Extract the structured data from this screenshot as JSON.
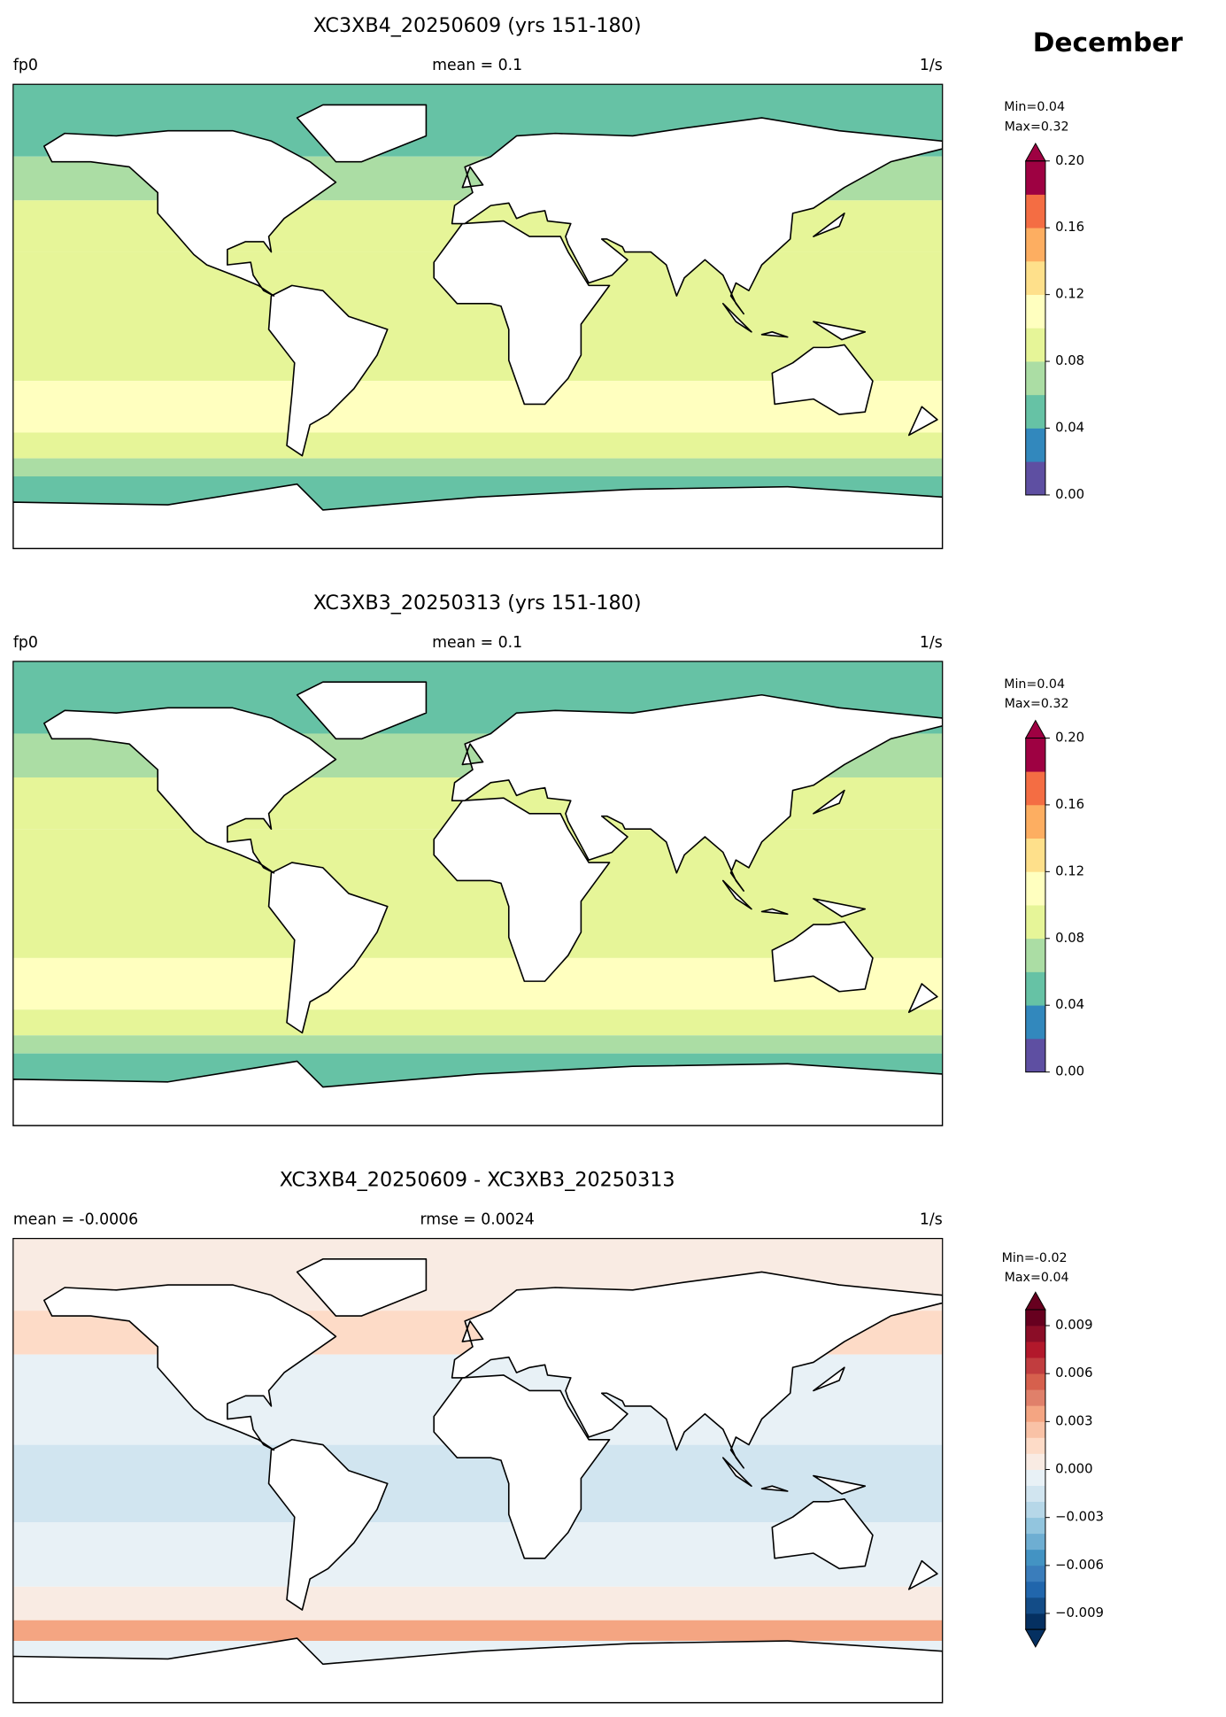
{
  "page_title": "December",
  "panels": [
    {
      "title": "XC3XB4_20250609 (yrs 151-180)",
      "left_label": "fp0",
      "center_label": "mean = 0.1",
      "right_label": "1/s",
      "min_label": "Min=0.04",
      "max_label": "Max=0.32",
      "colorbar": {
        "lim": [
          0,
          0.2
        ],
        "ticks": [
          {
            "value": 0,
            "label": "0.00"
          },
          0.04,
          0.08,
          0.12,
          0.16,
          {
            "value": 0.2,
            "label": "0.20"
          }
        ],
        "extend": "max",
        "colors": [
          "#5e4fa2",
          "#3288bd",
          "#66c2a5",
          "#abdda4",
          "#e6f598",
          "#ffffbf",
          "#fee08b",
          "#fdae61",
          "#f46d43",
          "#9e0142"
        ]
      }
    },
    {
      "title": "XC3XB3_20250313 (yrs 151-180)",
      "left_label": "fp0",
      "center_label": "mean = 0.1",
      "right_label": "1/s",
      "min_label": "Min=0.04",
      "max_label": "Max=0.32",
      "colorbar": {
        "lim": [
          0,
          0.2
        ],
        "ticks": [
          {
            "value": 0,
            "label": "0.00"
          },
          0.04,
          0.08,
          0.12,
          0.16,
          {
            "value": 0.2,
            "label": "0.20"
          }
        ],
        "extend": "max",
        "colors": [
          "#5e4fa2",
          "#3288bd",
          "#66c2a5",
          "#abdda4",
          "#e6f598",
          "#ffffbf",
          "#fee08b",
          "#fdae61",
          "#f46d43",
          "#9e0142"
        ]
      }
    },
    {
      "title": "XC3XB4_20250609 - XC3XB3_20250313",
      "left_label": "mean = -0.0006",
      "center_label": "rmse = 0.0024",
      "right_label": "1/s",
      "min_label": "Min=-0.02",
      "max_label": "Max=0.04",
      "colorbar": {
        "lim": [
          -0.01,
          0.01
        ],
        "ticks": [
          {
            "value": -0.009,
            "label": "−0.009"
          },
          {
            "value": -0.006,
            "label": "−0.006"
          },
          {
            "value": -0.003,
            "label": "−0.003"
          },
          {
            "value": 0,
            "label": "0.000"
          },
          0.003,
          0.006,
          0.009
        ],
        "extend": "both",
        "colors": [
          "#053061",
          "#134c87",
          "#2166ac",
          "#3a7dbb",
          "#4393c3",
          "#6eaed2",
          "#92c5de",
          "#b6d7e8",
          "#d1e5f0",
          "#e8f1f6",
          "#f9ebe3",
          "#fddbc7",
          "#f9c2a6",
          "#f4a582",
          "#e0806a",
          "#d6604d",
          "#c13d3f",
          "#b2182b",
          "#8b0d27",
          "#67001f"
        ]
      }
    }
  ]
}
